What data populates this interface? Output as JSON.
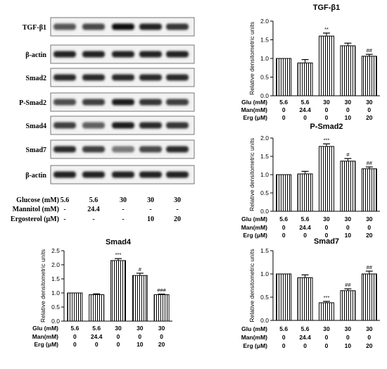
{
  "blot": {
    "rows": [
      "TGF-β1",
      "β-actin",
      "Smad2",
      "P-Smad2",
      "Smad4",
      "Smad7",
      "β-actin"
    ],
    "intensity": [
      [
        0.55,
        0.65,
        1.0,
        0.85,
        0.75
      ],
      [
        0.85,
        0.85,
        0.85,
        0.85,
        0.85
      ],
      [
        0.8,
        0.8,
        0.8,
        0.8,
        0.8
      ],
      [
        0.6,
        0.7,
        0.9,
        0.75,
        0.7
      ],
      [
        0.7,
        0.5,
        0.9,
        0.8,
        0.75
      ],
      [
        0.8,
        0.7,
        0.35,
        0.65,
        0.8
      ],
      [
        0.85,
        0.85,
        0.85,
        0.85,
        0.85
      ]
    ],
    "conditions": [
      {
        "label": "Glucose (mM)",
        "values": [
          "5.6",
          "5.6",
          "30",
          "30",
          "30"
        ]
      },
      {
        "label": "Mannitol (mM)",
        "values": [
          "-",
          "24.4",
          "-",
          "-",
          "-"
        ]
      },
      {
        "label": "Ergosterol (μM)",
        "values": [
          "-",
          "-",
          "-",
          "10",
          "20"
        ]
      }
    ]
  },
  "chart_data": [
    {
      "type": "bar",
      "title": "TGF-β1",
      "ylabel": "Relative densitometric units",
      "ylim": [
        0,
        2.0
      ],
      "yticks": [
        "0.0",
        "0.5",
        "1.0",
        "1.5",
        "2.0"
      ],
      "values": [
        1.0,
        0.88,
        1.6,
        1.34,
        1.06
      ],
      "errors": [
        0.0,
        0.09,
        0.08,
        0.07,
        0.05
      ],
      "annotations": [
        "",
        "",
        "**",
        "",
        "##"
      ],
      "conditions": [
        {
          "label": "Glu (mM)",
          "values": [
            "5.6",
            "5.6",
            "30",
            "30",
            "30"
          ]
        },
        {
          "label": "Man(mM)",
          "values": [
            "0",
            "24.4",
            "0",
            "0",
            "0"
          ]
        },
        {
          "label": "Erg  (μM)",
          "values": [
            "0",
            "0",
            "0",
            "10",
            "20"
          ]
        }
      ]
    },
    {
      "type": "bar",
      "title": "P-Smad2",
      "ylabel": "Relative densitometric units",
      "ylim": [
        0,
        2.0
      ],
      "yticks": [
        "0.0",
        "0.5",
        "1.0",
        "1.5",
        "2.0"
      ],
      "values": [
        1.0,
        1.02,
        1.77,
        1.37,
        1.16
      ],
      "errors": [
        0.0,
        0.07,
        0.07,
        0.07,
        0.05
      ],
      "annotations": [
        "",
        "",
        "***",
        "#",
        "##"
      ],
      "conditions": [
        {
          "label": "Glu (mM)",
          "values": [
            "5.6",
            "5.6",
            "30",
            "30",
            "30"
          ]
        },
        {
          "label": "Man(mM)",
          "values": [
            "0",
            "24.4",
            "0",
            "0",
            "0"
          ]
        },
        {
          "label": "Erg  (μM)",
          "values": [
            "0",
            "0",
            "0",
            "10",
            "20"
          ]
        }
      ]
    },
    {
      "type": "bar",
      "title": "Smad4",
      "ylabel": "Relative densitometric units",
      "ylim": [
        0,
        2.5
      ],
      "yticks": [
        "0.0",
        "0.5",
        "1.0",
        "1.5",
        "2.0",
        "2.5"
      ],
      "values": [
        1.0,
        0.94,
        2.15,
        1.62,
        0.94
      ],
      "errors": [
        0.0,
        0.03,
        0.07,
        0.08,
        0.02
      ],
      "annotations": [
        "",
        "",
        "***",
        "#",
        "###"
      ],
      "conditions": [
        {
          "label": "Glu (mM)",
          "values": [
            "5.6",
            "5.6",
            "30",
            "30",
            "30"
          ]
        },
        {
          "label": "Man(mM)",
          "values": [
            "0",
            "24.4",
            "0",
            "0",
            "0"
          ]
        },
        {
          "label": "Erg  (μM)",
          "values": [
            "0",
            "0",
            "0",
            "10",
            "20"
          ]
        }
      ]
    },
    {
      "type": "bar",
      "title": "Smad7",
      "ylabel": "Relative densitometric units",
      "ylim": [
        0,
        1.5
      ],
      "yticks": [
        "0.0",
        "0.5",
        "1.0",
        "1.5"
      ],
      "values": [
        1.0,
        0.92,
        0.38,
        0.64,
        1.0
      ],
      "errors": [
        0.0,
        0.06,
        0.03,
        0.04,
        0.06
      ],
      "annotations": [
        "",
        "",
        "***",
        "##",
        "##"
      ],
      "conditions": [
        {
          "label": "Glu (mM)",
          "values": [
            "5.6",
            "5.6",
            "30",
            "30",
            "30"
          ]
        },
        {
          "label": "Man(mM)",
          "values": [
            "0",
            "24.4",
            "0",
            "0",
            "0"
          ]
        },
        {
          "label": "Erg  (μM)",
          "values": [
            "0",
            "0",
            "0",
            "10",
            "20"
          ]
        }
      ]
    }
  ]
}
